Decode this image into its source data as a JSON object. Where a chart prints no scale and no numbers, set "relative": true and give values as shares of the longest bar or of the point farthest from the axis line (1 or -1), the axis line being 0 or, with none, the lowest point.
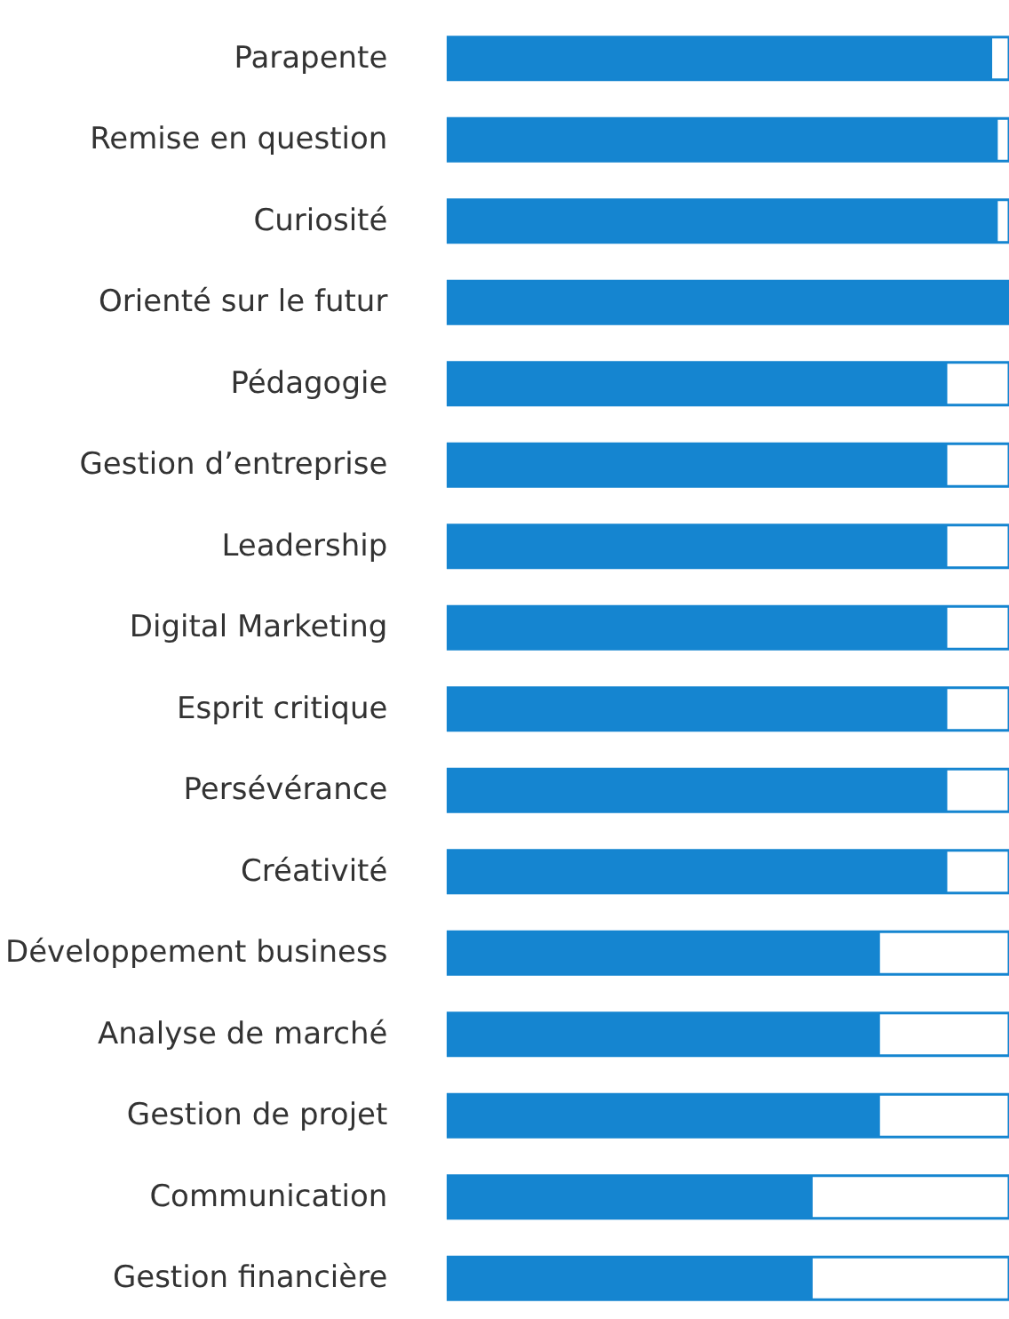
{
  "chart_data": {
    "type": "bar",
    "orientation": "horizontal",
    "relative": true,
    "color": "#1585d0",
    "categories": [
      "Parapente",
      "Remise en question",
      "Curiosité",
      "Orienté sur le futur",
      "Pédagogie",
      "Gestion d’entreprise",
      "Leadership",
      "Digital Marketing",
      "Esprit critique",
      "Persévérance",
      "Créativité",
      "Développement business",
      "Analyse de marché",
      "Gestion de projet",
      "Communication",
      "Gestion financière"
    ],
    "values": [
      0.97,
      0.98,
      0.98,
      1,
      0.89,
      0.89,
      0.89,
      0.89,
      0.89,
      0.89,
      0.89,
      0.77,
      0.77,
      0.77,
      0.65,
      0.65
    ]
  }
}
